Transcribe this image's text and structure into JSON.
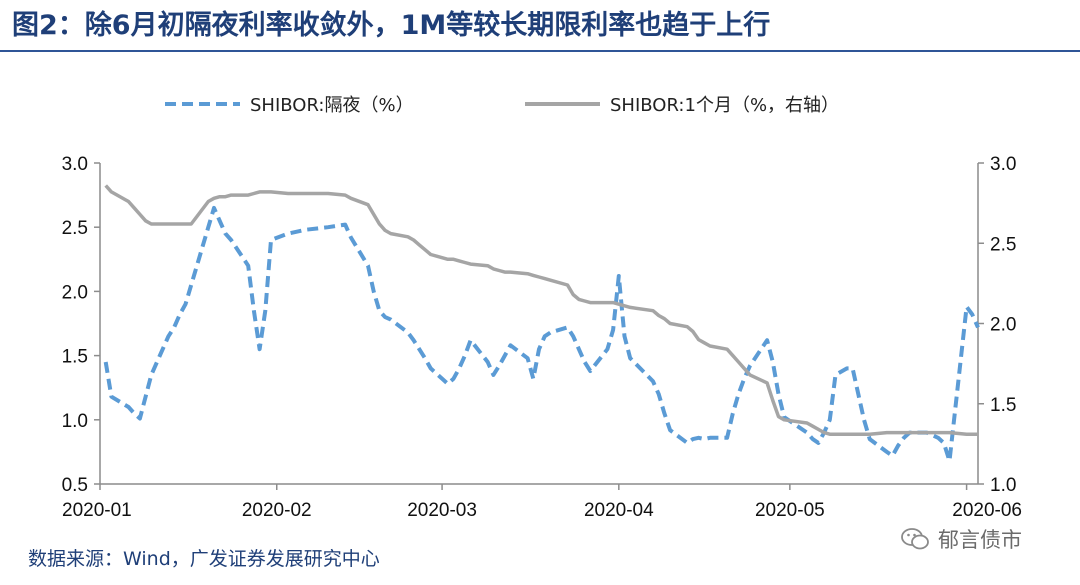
{
  "title": "图2：除6月初隔夜利率收敛外，1M等较长期限利率也趋于上行",
  "source": "数据来源：Wind，广发证券发展研究中心",
  "watermark": {
    "text": "郁言债市",
    "icon": "wechat-icon"
  },
  "colors": {
    "title": "#1f3f78",
    "rule": "#2f5597",
    "overnight": "#5b9bd5",
    "one_month": "#a5a5a5"
  },
  "chart_data": {
    "type": "line",
    "legend_position": "top",
    "grid": false,
    "x_ticks": [
      "2020-01",
      "2020-02",
      "2020-03",
      "2020-04",
      "2020-05",
      "2020-06"
    ],
    "xlim": [
      "2020-01-01",
      "2020-06-03"
    ],
    "y_left": {
      "lim": [
        0.5,
        3.0
      ],
      "ticks": [
        "0.5",
        "1.0",
        "1.5",
        "2.0",
        "2.5",
        "3.0"
      ]
    },
    "y_right": {
      "lim": [
        1.0,
        3.0
      ],
      "ticks": [
        "1.0",
        "1.5",
        "2.0",
        "2.5",
        "3.0"
      ]
    },
    "series": [
      {
        "name": "SHIBOR:隔夜（%）",
        "axis": "left",
        "style": "dashed",
        "points": [
          [
            "2020-01-02",
            1.45
          ],
          [
            "2020-01-03",
            1.18
          ],
          [
            "2020-01-06",
            1.1
          ],
          [
            "2020-01-07",
            1.05
          ],
          [
            "2020-01-08",
            1.01
          ],
          [
            "2020-01-09",
            1.18
          ],
          [
            "2020-01-10",
            1.35
          ],
          [
            "2020-01-13",
            1.65
          ],
          [
            "2020-01-14",
            1.72
          ],
          [
            "2020-01-15",
            1.82
          ],
          [
            "2020-01-16",
            1.9
          ],
          [
            "2020-01-17",
            2.05
          ],
          [
            "2020-01-20",
            2.5
          ],
          [
            "2020-01-21",
            2.65
          ],
          [
            "2020-01-22",
            2.55
          ],
          [
            "2020-01-23",
            2.45
          ],
          [
            "2020-01-24",
            2.4
          ],
          [
            "2020-01-27",
            2.2
          ],
          [
            "2020-01-28",
            1.85
          ],
          [
            "2020-01-29",
            1.55
          ],
          [
            "2020-01-30",
            1.85
          ],
          [
            "2020-01-31",
            2.4
          ],
          [
            "2020-02-03",
            2.45
          ],
          [
            "2020-02-06",
            2.48
          ],
          [
            "2020-02-10",
            2.5
          ],
          [
            "2020-02-13",
            2.52
          ],
          [
            "2020-02-14",
            2.42
          ],
          [
            "2020-02-17",
            2.2
          ],
          [
            "2020-02-18",
            2.0
          ],
          [
            "2020-02-19",
            1.85
          ],
          [
            "2020-02-20",
            1.8
          ],
          [
            "2020-02-21",
            1.78
          ],
          [
            "2020-02-24",
            1.68
          ],
          [
            "2020-02-25",
            1.62
          ],
          [
            "2020-02-26",
            1.55
          ],
          [
            "2020-02-27",
            1.48
          ],
          [
            "2020-02-28",
            1.4
          ],
          [
            "2020-03-02",
            1.28
          ],
          [
            "2020-03-03",
            1.32
          ],
          [
            "2020-03-04",
            1.4
          ],
          [
            "2020-03-05",
            1.5
          ],
          [
            "2020-03-06",
            1.62
          ],
          [
            "2020-03-09",
            1.45
          ],
          [
            "2020-03-10",
            1.35
          ],
          [
            "2020-03-11",
            1.42
          ],
          [
            "2020-03-12",
            1.5
          ],
          [
            "2020-03-13",
            1.58
          ],
          [
            "2020-03-16",
            1.48
          ],
          [
            "2020-03-17",
            1.32
          ],
          [
            "2020-03-18",
            1.55
          ],
          [
            "2020-03-19",
            1.65
          ],
          [
            "2020-03-20",
            1.68
          ],
          [
            "2020-03-23",
            1.72
          ],
          [
            "2020-03-24",
            1.65
          ],
          [
            "2020-03-25",
            1.55
          ],
          [
            "2020-03-26",
            1.45
          ],
          [
            "2020-03-27",
            1.38
          ],
          [
            "2020-03-30",
            1.55
          ],
          [
            "2020-03-31",
            1.7
          ],
          [
            "2020-04-01",
            2.12
          ],
          [
            "2020-04-02",
            1.65
          ],
          [
            "2020-04-03",
            1.48
          ],
          [
            "2020-04-07",
            1.3
          ],
          [
            "2020-04-08",
            1.2
          ],
          [
            "2020-04-09",
            1.05
          ],
          [
            "2020-04-10",
            0.92
          ],
          [
            "2020-04-13",
            0.82
          ],
          [
            "2020-04-14",
            0.85
          ],
          [
            "2020-04-15",
            0.86
          ],
          [
            "2020-04-16",
            0.85
          ],
          [
            "2020-04-17",
            0.86
          ],
          [
            "2020-04-20",
            0.86
          ],
          [
            "2020-04-21",
            1.05
          ],
          [
            "2020-04-22",
            1.2
          ],
          [
            "2020-04-23",
            1.32
          ],
          [
            "2020-04-24",
            1.42
          ],
          [
            "2020-04-27",
            1.62
          ],
          [
            "2020-04-28",
            1.45
          ],
          [
            "2020-04-29",
            1.2
          ],
          [
            "2020-04-30",
            1.02
          ],
          [
            "2020-05-04",
            0.9
          ],
          [
            "2020-05-05",
            0.85
          ],
          [
            "2020-05-06",
            0.82
          ],
          [
            "2020-05-07",
            0.9
          ],
          [
            "2020-05-08",
            1.0
          ],
          [
            "2020-05-09",
            1.35
          ],
          [
            "2020-05-11",
            1.4
          ],
          [
            "2020-05-12",
            1.4
          ],
          [
            "2020-05-13",
            1.2
          ],
          [
            "2020-05-14",
            1.0
          ],
          [
            "2020-05-15",
            0.85
          ],
          [
            "2020-05-18",
            0.75
          ],
          [
            "2020-05-19",
            0.72
          ],
          [
            "2020-05-20",
            0.8
          ],
          [
            "2020-05-21",
            0.86
          ],
          [
            "2020-05-22",
            0.9
          ],
          [
            "2020-05-25",
            0.9
          ],
          [
            "2020-05-26",
            0.88
          ],
          [
            "2020-05-27",
            0.86
          ],
          [
            "2020-05-28",
            0.82
          ],
          [
            "2020-05-29",
            0.68
          ],
          [
            "2020-06-01",
            1.88
          ],
          [
            "2020-06-02",
            1.82
          ],
          [
            "2020-06-03",
            1.72
          ]
        ]
      },
      {
        "name": "SHIBOR:1个月（%，右轴）",
        "axis": "right",
        "style": "solid",
        "points": [
          [
            "2020-01-02",
            2.86
          ],
          [
            "2020-01-03",
            2.82
          ],
          [
            "2020-01-06",
            2.76
          ],
          [
            "2020-01-07",
            2.72
          ],
          [
            "2020-01-08",
            2.68
          ],
          [
            "2020-01-09",
            2.64
          ],
          [
            "2020-01-10",
            2.62
          ],
          [
            "2020-01-13",
            2.62
          ],
          [
            "2020-01-14",
            2.62
          ],
          [
            "2020-01-15",
            2.62
          ],
          [
            "2020-01-16",
            2.62
          ],
          [
            "2020-01-17",
            2.62
          ],
          [
            "2020-01-20",
            2.76
          ],
          [
            "2020-01-21",
            2.78
          ],
          [
            "2020-01-22",
            2.79
          ],
          [
            "2020-01-23",
            2.79
          ],
          [
            "2020-01-24",
            2.8
          ],
          [
            "2020-01-27",
            2.8
          ],
          [
            "2020-01-28",
            2.81
          ],
          [
            "2020-01-29",
            2.82
          ],
          [
            "2020-01-30",
            2.82
          ],
          [
            "2020-01-31",
            2.82
          ],
          [
            "2020-02-03",
            2.81
          ],
          [
            "2020-02-06",
            2.81
          ],
          [
            "2020-02-10",
            2.81
          ],
          [
            "2020-02-13",
            2.8
          ],
          [
            "2020-02-14",
            2.78
          ],
          [
            "2020-02-17",
            2.74
          ],
          [
            "2020-02-18",
            2.68
          ],
          [
            "2020-02-19",
            2.62
          ],
          [
            "2020-02-20",
            2.58
          ],
          [
            "2020-02-21",
            2.56
          ],
          [
            "2020-02-24",
            2.54
          ],
          [
            "2020-02-25",
            2.52
          ],
          [
            "2020-02-26",
            2.49
          ],
          [
            "2020-02-27",
            2.46
          ],
          [
            "2020-02-28",
            2.43
          ],
          [
            "2020-03-02",
            2.4
          ],
          [
            "2020-03-03",
            2.4
          ],
          [
            "2020-03-04",
            2.39
          ],
          [
            "2020-03-05",
            2.38
          ],
          [
            "2020-03-06",
            2.37
          ],
          [
            "2020-03-09",
            2.36
          ],
          [
            "2020-03-10",
            2.34
          ],
          [
            "2020-03-11",
            2.33
          ],
          [
            "2020-03-12",
            2.32
          ],
          [
            "2020-03-13",
            2.32
          ],
          [
            "2020-03-16",
            2.31
          ],
          [
            "2020-03-17",
            2.3
          ],
          [
            "2020-03-18",
            2.29
          ],
          [
            "2020-03-19",
            2.28
          ],
          [
            "2020-03-20",
            2.27
          ],
          [
            "2020-03-23",
            2.24
          ],
          [
            "2020-03-24",
            2.18
          ],
          [
            "2020-03-25",
            2.15
          ],
          [
            "2020-03-26",
            2.14
          ],
          [
            "2020-03-27",
            2.13
          ],
          [
            "2020-03-30",
            2.13
          ],
          [
            "2020-03-31",
            2.13
          ],
          [
            "2020-04-01",
            2.12
          ],
          [
            "2020-04-02",
            2.11
          ],
          [
            "2020-04-03",
            2.1
          ],
          [
            "2020-04-07",
            2.08
          ],
          [
            "2020-04-08",
            2.05
          ],
          [
            "2020-04-09",
            2.03
          ],
          [
            "2020-04-10",
            2.0
          ],
          [
            "2020-04-13",
            1.98
          ],
          [
            "2020-04-14",
            1.95
          ],
          [
            "2020-04-15",
            1.9
          ],
          [
            "2020-04-16",
            1.88
          ],
          [
            "2020-04-17",
            1.86
          ],
          [
            "2020-04-20",
            1.84
          ],
          [
            "2020-04-21",
            1.8
          ],
          [
            "2020-04-22",
            1.76
          ],
          [
            "2020-04-23",
            1.72
          ],
          [
            "2020-04-24",
            1.68
          ],
          [
            "2020-04-27",
            1.63
          ],
          [
            "2020-04-28",
            1.52
          ],
          [
            "2020-04-29",
            1.42
          ],
          [
            "2020-04-30",
            1.4
          ],
          [
            "2020-05-04",
            1.38
          ],
          [
            "2020-05-05",
            1.36
          ],
          [
            "2020-05-06",
            1.34
          ],
          [
            "2020-05-07",
            1.32
          ],
          [
            "2020-05-08",
            1.31
          ],
          [
            "2020-05-09",
            1.31
          ],
          [
            "2020-05-11",
            1.31
          ],
          [
            "2020-05-12",
            1.31
          ],
          [
            "2020-05-13",
            1.31
          ],
          [
            "2020-05-14",
            1.31
          ],
          [
            "2020-05-15",
            1.31
          ],
          [
            "2020-05-18",
            1.32
          ],
          [
            "2020-05-19",
            1.32
          ],
          [
            "2020-05-20",
            1.32
          ],
          [
            "2020-05-21",
            1.32
          ],
          [
            "2020-05-22",
            1.32
          ],
          [
            "2020-05-25",
            1.32
          ],
          [
            "2020-05-26",
            1.32
          ],
          [
            "2020-05-27",
            1.32
          ],
          [
            "2020-05-28",
            1.32
          ],
          [
            "2020-05-29",
            1.32
          ],
          [
            "2020-06-01",
            1.31
          ],
          [
            "2020-06-02",
            1.31
          ],
          [
            "2020-06-03",
            1.31
          ]
        ]
      }
    ]
  }
}
